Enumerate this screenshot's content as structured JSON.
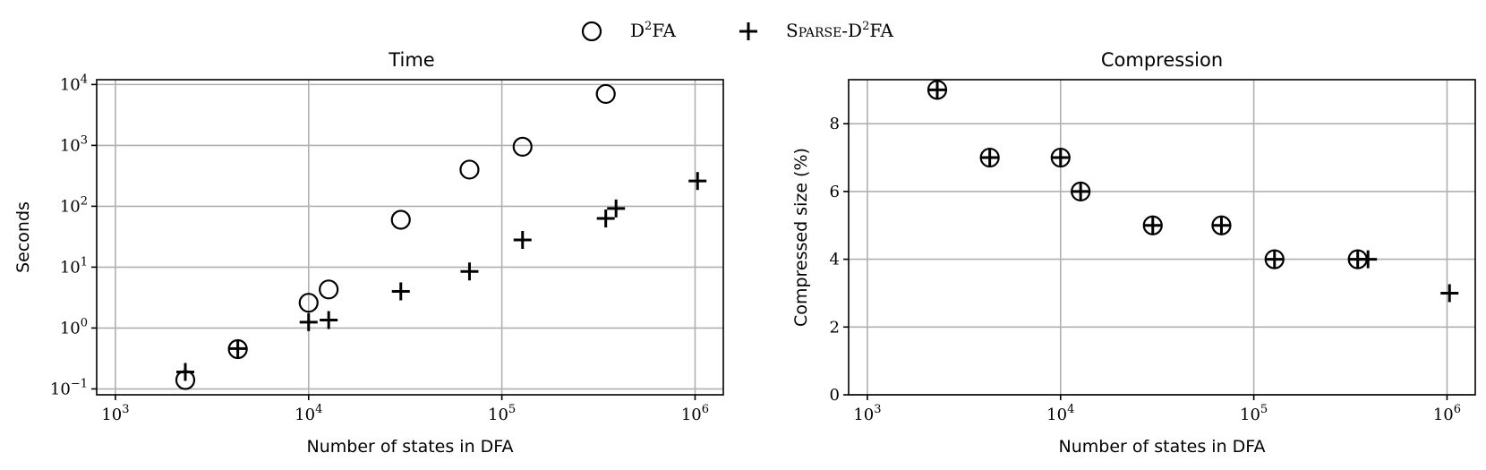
{
  "legend": {
    "placement": "top-center",
    "entries": [
      {
        "marker": "circle",
        "label_main": "D",
        "label_sup": "2",
        "label_tail": "FA"
      },
      {
        "marker": "plus",
        "label_prefix": "Sparse-D",
        "label_sup": "2",
        "label_tail": "FA"
      }
    ]
  },
  "chart_data": [
    {
      "type": "scatter",
      "title": "Time",
      "xlabel": "Number of states in DFA",
      "ylabel": "Seconds",
      "xscale": "log",
      "yscale": "log",
      "xlim": [
        800,
        1400000
      ],
      "ylim": [
        0.08,
        12000
      ],
      "grid": true,
      "xticks": [
        {
          "base": "10",
          "exp": "3",
          "value": 1000
        },
        {
          "base": "10",
          "exp": "4",
          "value": 10000
        },
        {
          "base": "10",
          "exp": "5",
          "value": 100000
        },
        {
          "base": "10",
          "exp": "6",
          "value": 1000000
        }
      ],
      "yticks": [
        {
          "base": "10",
          "exp": "−1",
          "value": 0.1
        },
        {
          "base": "10",
          "exp": "0",
          "value": 1
        },
        {
          "base": "10",
          "exp": "1",
          "value": 10
        },
        {
          "base": "10",
          "exp": "2",
          "value": 100
        },
        {
          "base": "10",
          "exp": "3",
          "value": 1000
        },
        {
          "base": "10",
          "exp": "4",
          "value": 10000
        }
      ],
      "series": [
        {
          "marker": "circle",
          "x": [
            2300,
            4300,
            10000,
            12700,
            30000,
            68000,
            128000,
            345000
          ],
          "y": [
            0.14,
            0.45,
            2.6,
            4.3,
            60,
            400,
            950,
            7000
          ]
        },
        {
          "marker": "plus",
          "x": [
            2300,
            4300,
            10000,
            12700,
            30000,
            68000,
            128000,
            345000,
            390000,
            1030000
          ],
          "y": [
            0.19,
            0.46,
            1.25,
            1.35,
            4.0,
            8.5,
            28,
            63,
            92,
            260
          ]
        }
      ]
    },
    {
      "type": "scatter",
      "title": "Compression",
      "xlabel": "Number of states in DFA",
      "ylabel": "Compressed size (%)",
      "xscale": "log",
      "yscale": "linear",
      "xlim": [
        800,
        1400000
      ],
      "ylim": [
        0,
        9.3
      ],
      "grid": true,
      "xticks": [
        {
          "base": "10",
          "exp": "3",
          "value": 1000
        },
        {
          "base": "10",
          "exp": "4",
          "value": 10000
        },
        {
          "base": "10",
          "exp": "5",
          "value": 100000
        },
        {
          "base": "10",
          "exp": "6",
          "value": 1000000
        }
      ],
      "yticks": [
        {
          "label": "0",
          "value": 0
        },
        {
          "label": "2",
          "value": 2
        },
        {
          "label": "4",
          "value": 4
        },
        {
          "label": "6",
          "value": 6
        },
        {
          "label": "8",
          "value": 8
        }
      ],
      "series": [
        {
          "marker": "circle",
          "x": [
            2300,
            4300,
            10000,
            12700,
            30000,
            68000,
            128000,
            345000
          ],
          "y": [
            9,
            7,
            7,
            6,
            5,
            5,
            4,
            4
          ]
        },
        {
          "marker": "plus",
          "x": [
            2300,
            4300,
            10000,
            12700,
            30000,
            68000,
            128000,
            345000,
            390000,
            1030000
          ],
          "y": [
            9,
            7,
            7,
            6,
            5,
            5,
            4,
            4,
            4,
            3
          ]
        }
      ]
    }
  ]
}
